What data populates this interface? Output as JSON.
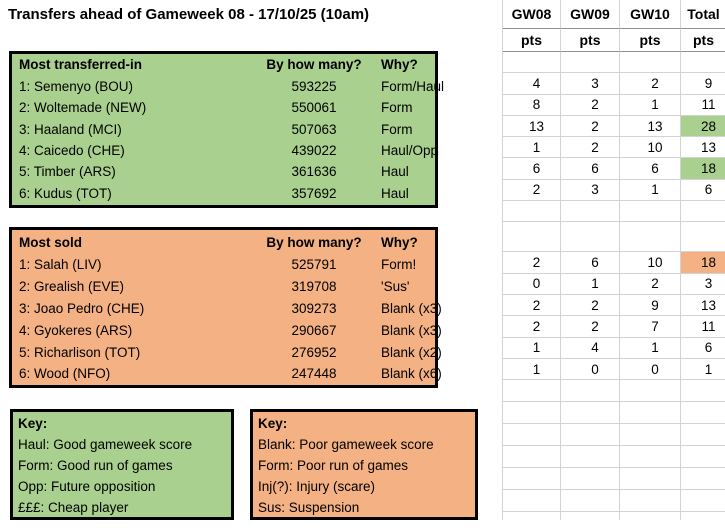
{
  "title": "Transfers ahead of Gameweek 08 - 17/10/25 (10am)",
  "colors": {
    "green": "#a9d08e",
    "orange": "#f4b183",
    "gridline": "#d3d3d3"
  },
  "pts_header": {
    "c0": "GW08",
    "c1": "GW09",
    "c2": "GW10",
    "c3": "Total",
    "sub": "pts"
  },
  "transfers_in": {
    "header": {
      "name": "Most transferred-in",
      "count": "By how many?",
      "why": "Why?"
    },
    "rows": [
      {
        "player": "1: Semenyo (BOU)",
        "count": "593225",
        "why": "Form/Haul",
        "pts": [
          "4",
          "3",
          "2",
          "9"
        ]
      },
      {
        "player": "2: Woltemade (NEW)",
        "count": "550061",
        "why": "Form",
        "pts": [
          "8",
          "2",
          "1",
          "11"
        ]
      },
      {
        "player": "3: Haaland (MCI)",
        "count": "507063",
        "why": "Form",
        "pts": [
          "13",
          "2",
          "13",
          "28"
        ]
      },
      {
        "player": "4: Caicedo (CHE)",
        "count": "439022",
        "why": "Haul/Opp",
        "pts": [
          "1",
          "2",
          "10",
          "13"
        ]
      },
      {
        "player": "5: Timber (ARS)",
        "count": "361636",
        "why": "Haul",
        "pts": [
          "6",
          "6",
          "6",
          "18"
        ]
      },
      {
        "player": "6: Kudus (TOT)",
        "count": "357692",
        "why": "Haul",
        "pts": [
          "2",
          "3",
          "1",
          "6"
        ]
      }
    ]
  },
  "transfers_out": {
    "header": {
      "name": "Most sold",
      "count": "By how many?",
      "why": "Why?"
    },
    "rows": [
      {
        "player": "1: Salah (LIV)",
        "count": "525791",
        "why": "Form!",
        "pts": [
          "2",
          "6",
          "10",
          "18"
        ]
      },
      {
        "player": "2: Grealish (EVE)",
        "count": "319708",
        "why": "'Sus'",
        "pts": [
          "0",
          "1",
          "2",
          "3"
        ]
      },
      {
        "player": "3: Joao Pedro (CHE)",
        "count": "309273",
        "why": "Blank (x3)",
        "pts": [
          "2",
          "2",
          "9",
          "13"
        ]
      },
      {
        "player": "4: Gyokeres (ARS)",
        "count": "290667",
        "why": "Blank (x3)",
        "pts": [
          "2",
          "2",
          "7",
          "11"
        ]
      },
      {
        "player": "5: Richarlison (TOT)",
        "count": "276952",
        "why": "Blank (x2)",
        "pts": [
          "1",
          "4",
          "1",
          "6"
        ]
      },
      {
        "player": "6: Wood (NFO)",
        "count": "247448",
        "why": "Blank (x6)",
        "pts": [
          "1",
          "0",
          "0",
          "1"
        ]
      }
    ]
  },
  "key_good": {
    "title": "Key:",
    "l0": "Haul: Good gameweek score",
    "l1": "Form: Good run of games",
    "l2": "Opp: Future opposition",
    "l3": "£££: Cheap player"
  },
  "key_bad": {
    "title": "Key:",
    "l0": "Blank: Poor gameweek score",
    "l1": "Form: Poor run of games",
    "l2": "Inj(?): Injury (scare)",
    "l3": "Sus: Suspension"
  }
}
